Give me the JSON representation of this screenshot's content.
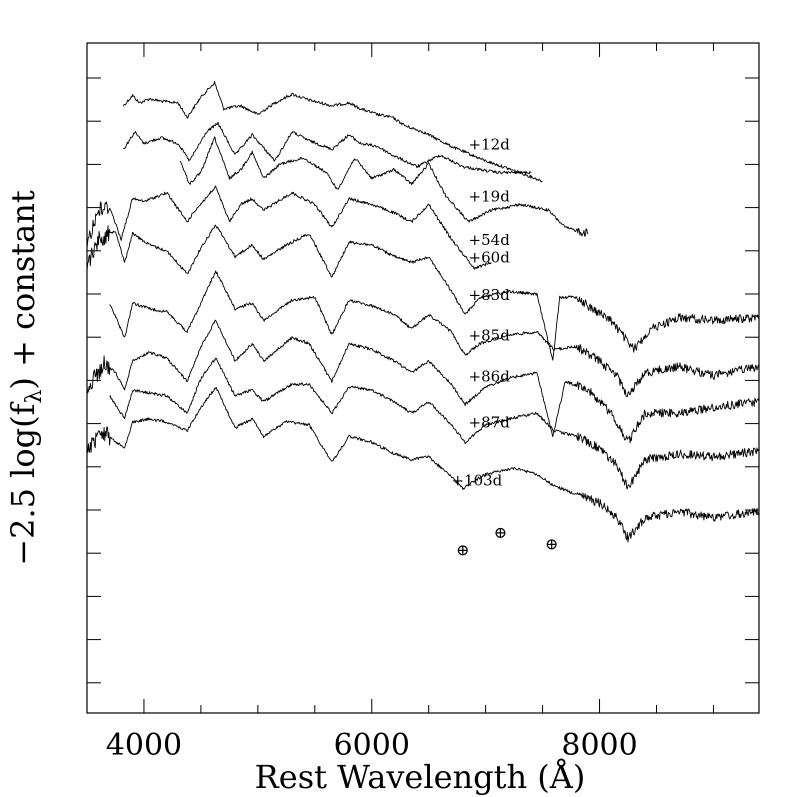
{
  "chart_data": {
    "type": "line",
    "title": "",
    "xlabel": "Rest Wavelength (Å)",
    "ylabel": "−2.5 log(f",
    "ylabel_sub": "λ",
    "ylabel_tail": ") + constant",
    "xlim": [
      3500,
      9400
    ],
    "x_ticks_major": [
      4000,
      6000,
      8000
    ],
    "x_tick_labels": [
      "4000",
      "6000",
      "8000"
    ],
    "grid": false,
    "legend": "none",
    "telluric_symbol": "⊕",
    "telluric_markers": [
      {
        "x": 6800,
        "offset": 7.85
      },
      {
        "x": 7130,
        "offset": 7.55
      },
      {
        "x": 7580,
        "offset": 7.75
      }
    ],
    "series": [
      {
        "name": "+12d",
        "offset": 0.0,
        "label_x": 6850,
        "label_dy": 0.85,
        "points": [
          [
            3820,
            0.1
          ],
          [
            3900,
            -0.08
          ],
          [
            3960,
            0.05
          ],
          [
            4050,
            -0.02
          ],
          [
            4150,
            0.02
          ],
          [
            4300,
            0.05
          ],
          [
            4380,
            0.3
          ],
          [
            4500,
            -0.05
          ],
          [
            4620,
            -0.3
          ],
          [
            4700,
            0.15
          ],
          [
            4850,
            0.1
          ],
          [
            5000,
            0.25
          ],
          [
            5150,
            0.05
          ],
          [
            5300,
            -0.1
          ],
          [
            5450,
            0.0
          ],
          [
            5650,
            0.1
          ],
          [
            5800,
            0.05
          ],
          [
            5900,
            0.15
          ],
          [
            6050,
            0.25
          ],
          [
            6180,
            0.3
          ],
          [
            6300,
            0.45
          ],
          [
            6450,
            0.55
          ],
          [
            6700,
            0.8
          ],
          [
            7000,
            1.05
          ],
          [
            7300,
            1.25
          ],
          [
            7500,
            1.4
          ]
        ]
      },
      {
        "name": "+19d",
        "offset": 0.9,
        "label_x": 6850,
        "label_dy": 0.85,
        "points": [
          [
            3820,
            0.85
          ],
          [
            3920,
            0.55
          ],
          [
            4000,
            0.75
          ],
          [
            4150,
            0.65
          ],
          [
            4300,
            0.75
          ],
          [
            4400,
            1.05
          ],
          [
            4550,
            0.55
          ],
          [
            4650,
            0.4
          ],
          [
            4800,
            0.95
          ],
          [
            4950,
            0.6
          ],
          [
            5150,
            1.05
          ],
          [
            5300,
            0.55
          ],
          [
            5450,
            0.7
          ],
          [
            5650,
            0.85
          ],
          [
            5800,
            0.6
          ],
          [
            5900,
            0.75
          ],
          [
            6050,
            0.8
          ],
          [
            6180,
            0.95
          ],
          [
            6400,
            1.15
          ],
          [
            6600,
            0.95
          ],
          [
            6800,
            1.15
          ],
          [
            7100,
            1.25
          ],
          [
            7400,
            1.25
          ]
        ]
      },
      {
        "name": "+54d",
        "offset": 1.65,
        "label_x": 6850,
        "label_dy": 0.85,
        "points": [
          [
            4320,
            1.05
          ],
          [
            4400,
            1.45
          ],
          [
            4500,
            1.25
          ],
          [
            4620,
            0.65
          ],
          [
            4750,
            1.35
          ],
          [
            4850,
            1.2
          ],
          [
            4950,
            0.9
          ],
          [
            5050,
            1.35
          ],
          [
            5200,
            1.1
          ],
          [
            5400,
            1.0
          ],
          [
            5600,
            1.25
          ],
          [
            5700,
            1.55
          ],
          [
            5850,
            1.0
          ],
          [
            6000,
            1.35
          ],
          [
            6200,
            1.2
          ],
          [
            6350,
            1.45
          ],
          [
            6500,
            1.1
          ],
          [
            6650,
            1.65
          ],
          [
            6850,
            2.1
          ],
          [
            7050,
            1.9
          ],
          [
            7300,
            1.8
          ],
          [
            7550,
            1.9
          ],
          [
            7700,
            2.2
          ],
          [
            7900,
            2.3
          ]
        ]
      },
      {
        "name": "+60d",
        "offset": 2.5,
        "label_x": 6850,
        "label_dy": 0.3,
        "points": [
          [
            3500,
            2.45
          ],
          [
            3600,
            1.9
          ],
          [
            3700,
            1.85
          ],
          [
            3800,
            2.4
          ],
          [
            3900,
            1.7
          ],
          [
            4000,
            1.75
          ],
          [
            4200,
            1.6
          ],
          [
            4380,
            2.1
          ],
          [
            4450,
            1.9
          ],
          [
            4630,
            1.5
          ],
          [
            4750,
            2.1
          ],
          [
            4850,
            1.8
          ],
          [
            4950,
            1.7
          ],
          [
            5050,
            1.9
          ],
          [
            5300,
            1.6
          ],
          [
            5500,
            1.8
          ],
          [
            5650,
            2.2
          ],
          [
            5800,
            1.7
          ],
          [
            6000,
            1.8
          ],
          [
            6200,
            1.95
          ],
          [
            6350,
            2.1
          ],
          [
            6500,
            1.8
          ],
          [
            6700,
            2.4
          ],
          [
            6900,
            2.9
          ],
          [
            7050,
            2.8
          ]
        ]
      },
      {
        "name": "+83d",
        "offset": 3.3,
        "label_x": 6850,
        "label_dy": 0.15,
        "points": [
          [
            3500,
            2.85
          ],
          [
            3600,
            2.4
          ],
          [
            3750,
            2.25
          ],
          [
            3830,
            2.8
          ],
          [
            3900,
            2.3
          ],
          [
            4050,
            2.5
          ],
          [
            4200,
            2.6
          ],
          [
            4380,
            3.0
          ],
          [
            4500,
            2.55
          ],
          [
            4630,
            2.15
          ],
          [
            4800,
            2.7
          ],
          [
            4950,
            2.5
          ],
          [
            5050,
            2.75
          ],
          [
            5250,
            2.5
          ],
          [
            5450,
            2.3
          ],
          [
            5650,
            3.05
          ],
          [
            5800,
            2.45
          ],
          [
            6000,
            2.5
          ],
          [
            6200,
            2.7
          ],
          [
            6350,
            2.8
          ],
          [
            6500,
            2.7
          ],
          [
            6700,
            3.3
          ],
          [
            6820,
            3.7
          ],
          [
            6950,
            3.4
          ],
          [
            7200,
            3.3
          ],
          [
            7450,
            3.35
          ],
          [
            7590,
            4.5
          ],
          [
            7650,
            3.4
          ],
          [
            7800,
            3.4
          ],
          [
            7900,
            3.55
          ],
          [
            8100,
            3.8
          ],
          [
            8300,
            4.3
          ],
          [
            8450,
            3.95
          ],
          [
            8700,
            3.75
          ],
          [
            9000,
            3.8
          ],
          [
            9400,
            3.75
          ]
        ]
      },
      {
        "name": "+85d",
        "offset": 4.0,
        "label_x": 6850,
        "label_dy": 0.15,
        "points": [
          [
            3700,
            3.5
          ],
          [
            3830,
            4.1
          ],
          [
            3900,
            3.5
          ],
          [
            4050,
            3.6
          ],
          [
            4200,
            3.65
          ],
          [
            4380,
            4.0
          ],
          [
            4500,
            3.5
          ],
          [
            4630,
            2.95
          ],
          [
            4800,
            3.6
          ],
          [
            4950,
            3.5
          ],
          [
            5050,
            3.8
          ],
          [
            5300,
            3.45
          ],
          [
            5500,
            3.4
          ],
          [
            5650,
            4.05
          ],
          [
            5800,
            3.45
          ],
          [
            6000,
            3.55
          ],
          [
            6200,
            3.7
          ],
          [
            6350,
            3.95
          ],
          [
            6500,
            3.7
          ],
          [
            6700,
            4.0
          ],
          [
            6820,
            4.4
          ],
          [
            6950,
            4.2
          ],
          [
            7200,
            4.05
          ],
          [
            7450,
            4.0
          ],
          [
            7600,
            4.3
          ],
          [
            7800,
            4.25
          ],
          [
            8000,
            4.5
          ],
          [
            8150,
            4.75
          ],
          [
            8250,
            5.1
          ],
          [
            8400,
            4.7
          ],
          [
            8700,
            4.6
          ],
          [
            9000,
            4.75
          ],
          [
            9400,
            4.6
          ]
        ]
      },
      {
        "name": "+86d",
        "offset": 4.7,
        "label_x": 6850,
        "label_dy": 0.15,
        "points": [
          [
            3500,
            5.0
          ],
          [
            3650,
            4.55
          ],
          [
            3750,
            4.7
          ],
          [
            3830,
            5.0
          ],
          [
            3900,
            4.5
          ],
          [
            4050,
            4.35
          ],
          [
            4200,
            4.45
          ],
          [
            4380,
            4.85
          ],
          [
            4500,
            4.25
          ],
          [
            4630,
            3.8
          ],
          [
            4800,
            4.5
          ],
          [
            4950,
            4.2
          ],
          [
            5050,
            4.5
          ],
          [
            5300,
            4.1
          ],
          [
            5450,
            4.2
          ],
          [
            5650,
            4.85
          ],
          [
            5800,
            4.2
          ],
          [
            6000,
            4.3
          ],
          [
            6200,
            4.5
          ],
          [
            6350,
            4.7
          ],
          [
            6500,
            4.5
          ],
          [
            6700,
            4.9
          ],
          [
            6820,
            5.25
          ],
          [
            7000,
            4.95
          ],
          [
            7200,
            4.8
          ],
          [
            7450,
            4.7
          ],
          [
            7590,
            5.8
          ],
          [
            7700,
            4.85
          ],
          [
            7900,
            5.0
          ],
          [
            8100,
            5.4
          ],
          [
            8250,
            5.9
          ],
          [
            8400,
            5.4
          ],
          [
            8700,
            5.4
          ],
          [
            9000,
            5.3
          ],
          [
            9400,
            5.2
          ]
        ]
      },
      {
        "name": "+87d",
        "offset": 5.5,
        "label_x": 6850,
        "label_dy": 0.15,
        "points": [
          [
            3700,
            5.1
          ],
          [
            3830,
            5.5
          ],
          [
            3900,
            5.0
          ],
          [
            4050,
            5.05
          ],
          [
            4200,
            5.1
          ],
          [
            4380,
            5.4
          ],
          [
            4500,
            4.8
          ],
          [
            4630,
            4.45
          ],
          [
            4800,
            5.1
          ],
          [
            4950,
            5.0
          ],
          [
            5050,
            5.2
          ],
          [
            5300,
            4.9
          ],
          [
            5450,
            4.9
          ],
          [
            5650,
            5.4
          ],
          [
            5800,
            4.95
          ],
          [
            6000,
            5.0
          ],
          [
            6200,
            5.2
          ],
          [
            6350,
            5.4
          ],
          [
            6500,
            5.2
          ],
          [
            6700,
            5.6
          ],
          [
            6820,
            5.9
          ],
          [
            7000,
            5.6
          ],
          [
            7200,
            5.5
          ],
          [
            7450,
            5.4
          ],
          [
            7600,
            5.7
          ],
          [
            7800,
            5.8
          ],
          [
            8000,
            6.0
          ],
          [
            8150,
            6.3
          ],
          [
            8250,
            6.7
          ],
          [
            8400,
            6.2
          ],
          [
            8700,
            6.1
          ],
          [
            9000,
            6.15
          ],
          [
            9400,
            6.05
          ]
        ]
      },
      {
        "name": "+103d",
        "offset": 6.3,
        "label_x": 6700,
        "label_dy": 0.35,
        "points": [
          [
            3500,
            6.0
          ],
          [
            3650,
            5.75
          ],
          [
            3830,
            6.0
          ],
          [
            3900,
            5.55
          ],
          [
            4050,
            5.5
          ],
          [
            4200,
            5.55
          ],
          [
            4380,
            5.7
          ],
          [
            4500,
            5.3
          ],
          [
            4630,
            4.95
          ],
          [
            4800,
            5.65
          ],
          [
            4950,
            5.5
          ],
          [
            5050,
            5.8
          ],
          [
            5250,
            5.55
          ],
          [
            5450,
            5.6
          ],
          [
            5650,
            6.25
          ],
          [
            5800,
            5.8
          ],
          [
            6000,
            5.9
          ],
          [
            6200,
            6.1
          ],
          [
            6350,
            6.2
          ],
          [
            6500,
            6.15
          ],
          [
            6700,
            6.5
          ],
          [
            6800,
            6.7
          ],
          [
            7000,
            6.45
          ],
          [
            7250,
            6.35
          ],
          [
            7450,
            6.45
          ],
          [
            7600,
            6.65
          ],
          [
            7800,
            6.8
          ],
          [
            8000,
            6.95
          ],
          [
            8150,
            7.2
          ],
          [
            8250,
            7.55
          ],
          [
            8400,
            7.2
          ],
          [
            8700,
            7.1
          ],
          [
            9000,
            7.2
          ],
          [
            9400,
            7.1
          ]
        ]
      }
    ]
  }
}
